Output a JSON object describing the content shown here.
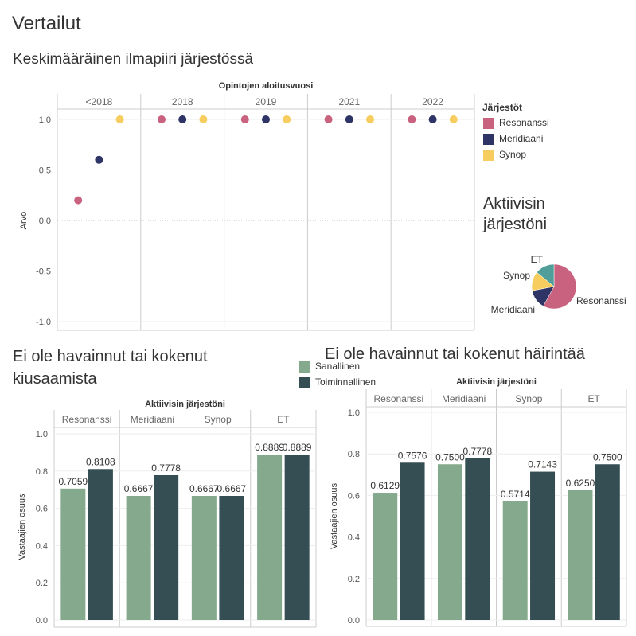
{
  "page": {
    "title": "Vertailut"
  },
  "chart1": {
    "title": "Keskimääräinen ilmapiiri järjestössä"
  },
  "legend_orgs": {
    "title": "Järjestöt",
    "items": [
      {
        "label": "Resonanssi",
        "color": "#c9627e"
      },
      {
        "label": "Meridiaani",
        "color": "#2e3566"
      },
      {
        "label": "Synop",
        "color": "#f6cd5e"
      }
    ]
  },
  "pie_title": {
    "line1": "Aktiivisin",
    "line2": "järjestöni"
  },
  "chart2": {
    "title_line1": "Ei ole havainnut tai kokenut",
    "title_line2": "kiusaamista"
  },
  "chart3": {
    "title": "Ei ole havainnut tai kokenut häirintää"
  },
  "legend_types": {
    "items": [
      {
        "label": "Sanallinen",
        "color": "#84a98c"
      },
      {
        "label": "Toiminnallinen",
        "color": "#344e53"
      }
    ]
  },
  "chart_data": [
    {
      "type": "scatter",
      "title": "Keskimääräinen ilmapiiri järjestössä",
      "facet_label": "Opintojen aloitusvuosi",
      "facets": [
        "<2018",
        "2018",
        "2019",
        "2021",
        "2022"
      ],
      "series_names": [
        "Resonanssi",
        "Meridiaani",
        "Synop"
      ],
      "colors": [
        "#c9627e",
        "#2e3566",
        "#f6cd5e"
      ],
      "values": [
        [
          0.2,
          0.6,
          1.0
        ],
        [
          1.0,
          1.0,
          1.0
        ],
        [
          1.0,
          1.0,
          1.0
        ],
        [
          1.0,
          1.0,
          1.0
        ],
        [
          1.0,
          1.0,
          1.0
        ]
      ],
      "ylabel": "Arvo",
      "ylim": [
        -1.1,
        1.1
      ],
      "yticks": [
        "1.0",
        "0.5",
        "0.0",
        "-0.5",
        "-1.0"
      ]
    },
    {
      "type": "pie",
      "title": "Aktiivisin järjestöni",
      "slices": [
        {
          "label": "Resonanssi",
          "value": 58,
          "color": "#c9627e"
        },
        {
          "label": "Meridiaani",
          "value": 14,
          "color": "#2e3566"
        },
        {
          "label": "Synop",
          "value": 14,
          "color": "#f6cd5e"
        },
        {
          "label": "ET",
          "value": 14,
          "color": "#4f9e99"
        }
      ]
    },
    {
      "type": "bar",
      "title": "Ei ole havainnut tai kokenut kiusaamista",
      "facet_label": "Aktiivisin järjestöni",
      "categories": [
        "Resonanssi",
        "Meridiaani",
        "Synop",
        "ET"
      ],
      "series": [
        {
          "name": "Sanallinen",
          "values": [
            0.7059,
            0.6667,
            0.6667,
            0.8889
          ],
          "labels": [
            "0.7059",
            "0.6667",
            "0.6667",
            "0.8889"
          ]
        },
        {
          "name": "Toiminnallinen",
          "values": [
            0.8108,
            0.7778,
            0.6667,
            0.8889
          ],
          "labels": [
            "0.8108",
            "0.7778",
            "0.6667",
            "0.8889"
          ]
        }
      ],
      "ylabel": "Vastaajien osuus",
      "ylim": [
        0,
        1.0
      ],
      "yticks": [
        "1.0",
        "0.8",
        "0.6",
        "0.4",
        "0.2",
        "0.0"
      ]
    },
    {
      "type": "bar",
      "title": "Ei ole havainnut tai kokenut häirintää",
      "facet_label": "Aktiivisin järjestöni",
      "categories": [
        "Resonanssi",
        "Meridiaani",
        "Synop",
        "ET"
      ],
      "series": [
        {
          "name": "Sanallinen",
          "values": [
            0.6129,
            0.75,
            0.5714,
            0.625
          ],
          "labels": [
            "0.6129",
            "0.7500",
            "0.5714",
            "0.6250"
          ]
        },
        {
          "name": "Toiminnallinen",
          "values": [
            0.7576,
            0.7778,
            0.7143,
            0.75
          ],
          "labels": [
            "0.7576",
            "0.7778",
            "0.7143",
            "0.7500"
          ]
        }
      ],
      "ylabel": "Vastaajien osuus",
      "ylim": [
        0,
        1.0
      ],
      "yticks": [
        "1.0",
        "0.8",
        "0.6",
        "0.4",
        "0.2",
        "0.0"
      ]
    }
  ]
}
